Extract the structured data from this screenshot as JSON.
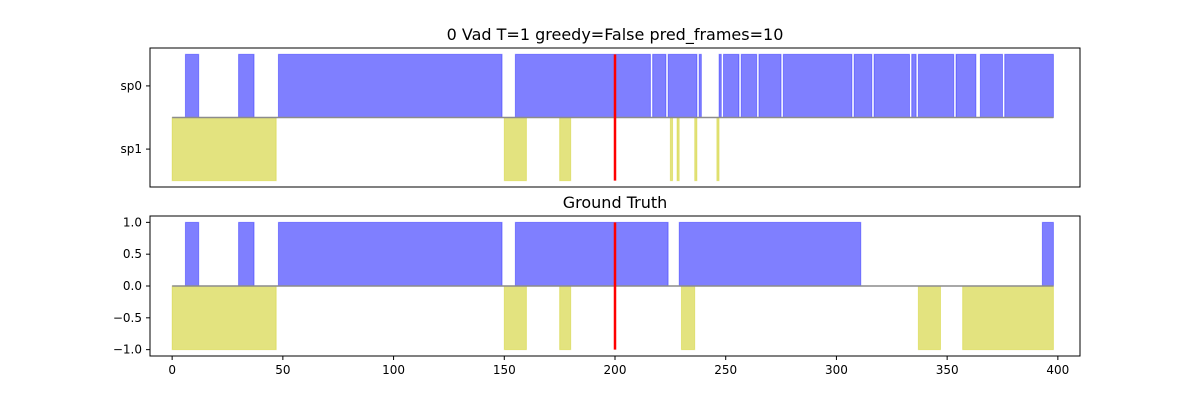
{
  "chart_data": [
    {
      "type": "area",
      "title": "0 Vad T=1 greedy=False pred_frames=10",
      "x_range": [
        -10,
        410
      ],
      "y_range": [
        -1.1,
        1.1
      ],
      "y_ticks": [
        {
          "value": 0.5,
          "label": "sp0"
        },
        {
          "value": -0.5,
          "label": "sp1"
        }
      ],
      "x_ticks": [],
      "baseline": 0,
      "marker_x": 200,
      "marker_color": "#ff0000",
      "series": [
        {
          "color": "#0000ff",
          "value": 1,
          "segments": [
            [
              6,
              12
            ],
            [
              30,
              37
            ],
            [
              48,
              149
            ],
            [
              155,
              216
            ],
            [
              217,
              223
            ],
            [
              224,
              237
            ],
            [
              238,
              239
            ],
            [
              247,
              248
            ],
            [
              249,
              256
            ],
            [
              257,
              264
            ],
            [
              265,
              275
            ],
            [
              276,
              307
            ],
            [
              308,
              316
            ],
            [
              317,
              333
            ],
            [
              334,
              336
            ],
            [
              337,
              353
            ],
            [
              354,
              363
            ],
            [
              365,
              375
            ],
            [
              376,
              398
            ]
          ]
        },
        {
          "color": "#c8c800",
          "value": -1,
          "segments": [
            [
              0,
              47
            ],
            [
              150,
              160
            ],
            [
              175,
              180
            ],
            [
              225,
              226
            ],
            [
              228,
              229
            ],
            [
              236,
              237
            ],
            [
              246,
              247
            ]
          ]
        }
      ]
    },
    {
      "type": "area",
      "title": "Ground Truth",
      "x_range": [
        -10,
        410
      ],
      "y_range": [
        -1.1,
        1.1
      ],
      "y_ticks": [
        {
          "value": 1.0,
          "label": "1.0"
        },
        {
          "value": 0.5,
          "label": "0.5"
        },
        {
          "value": 0.0,
          "label": "0.0"
        },
        {
          "value": -0.5,
          "label": "−0.5"
        },
        {
          "value": -1.0,
          "label": "−1.0"
        }
      ],
      "x_ticks": [
        {
          "value": 0,
          "label": "0"
        },
        {
          "value": 50,
          "label": "50"
        },
        {
          "value": 100,
          "label": "100"
        },
        {
          "value": 150,
          "label": "150"
        },
        {
          "value": 200,
          "label": "200"
        },
        {
          "value": 250,
          "label": "250"
        },
        {
          "value": 300,
          "label": "300"
        },
        {
          "value": 350,
          "label": "350"
        },
        {
          "value": 400,
          "label": "400"
        }
      ],
      "baseline": 0,
      "marker_x": 200,
      "marker_color": "#ff0000",
      "series": [
        {
          "color": "#0000ff",
          "value": 1,
          "segments": [
            [
              6,
              12
            ],
            [
              30,
              37
            ],
            [
              48,
              149
            ],
            [
              155,
              224
            ],
            [
              229,
              311
            ],
            [
              393,
              398
            ]
          ]
        },
        {
          "color": "#c8c800",
          "value": -1,
          "segments": [
            [
              0,
              47
            ],
            [
              150,
              160
            ],
            [
              175,
              180
            ],
            [
              230,
              236
            ],
            [
              337,
              347
            ],
            [
              357,
              398
            ]
          ]
        }
      ]
    }
  ]
}
